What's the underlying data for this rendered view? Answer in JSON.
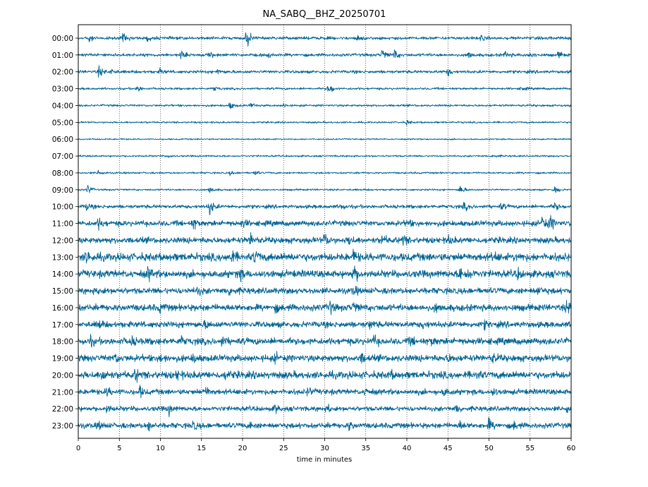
{
  "chart_data": {
    "type": "line",
    "title": "NA_SABQ__BHZ_20250701",
    "xlabel": "time in minutes",
    "ylabel": "",
    "xlim": [
      0,
      60
    ],
    "x_ticks": [
      0,
      5,
      10,
      15,
      20,
      25,
      30,
      35,
      40,
      45,
      50,
      55,
      60
    ],
    "grid": "vertical dotted at every 5 minutes",
    "trace_color": "#006494",
    "rows": [
      {
        "label": "00:00",
        "amplitude": 0.25,
        "events": [
          [
            1.2,
            0.9
          ],
          [
            5.5,
            0.8
          ],
          [
            8.5,
            0.5
          ],
          [
            20.5,
            1.8
          ],
          [
            34,
            0.5
          ],
          [
            49,
            0.4
          ]
        ]
      },
      {
        "label": "01:00",
        "amplitude": 0.25,
        "events": [
          [
            12.5,
            0.7
          ],
          [
            16,
            0.5
          ],
          [
            23,
            0.4
          ],
          [
            37,
            1.0
          ],
          [
            38.5,
            0.9
          ],
          [
            47.5,
            0.6
          ],
          [
            52,
            0.6
          ],
          [
            55,
            0.6
          ],
          [
            58.5,
            0.5
          ]
        ]
      },
      {
        "label": "02:00",
        "amplitude": 0.25,
        "events": [
          [
            2.5,
            0.8
          ],
          [
            4,
            0.5
          ],
          [
            10,
            0.4
          ],
          [
            17,
            0.4
          ],
          [
            45,
            0.6
          ]
        ]
      },
      {
        "label": "03:00",
        "amplitude": 0.18,
        "events": [
          [
            7.2,
            0.6
          ],
          [
            16.5,
            0.4
          ],
          [
            30.5,
            1.2
          ],
          [
            54,
            0.4
          ]
        ]
      },
      {
        "label": "04:00",
        "amplitude": 0.18,
        "events": [
          [
            18.5,
            0.6
          ],
          [
            21,
            0.4
          ],
          [
            25,
            0.3
          ]
        ]
      },
      {
        "label": "05:00",
        "amplitude": 0.15,
        "events": [
          [
            40,
            0.4
          ]
        ]
      },
      {
        "label": "06:00",
        "amplitude": 0.12,
        "events": []
      },
      {
        "label": "07:00",
        "amplitude": 0.15,
        "events": [
          [
            11,
            0.3
          ],
          [
            50.5,
            0.4
          ]
        ]
      },
      {
        "label": "08:00",
        "amplitude": 0.15,
        "events": [
          [
            2.5,
            0.5
          ],
          [
            18.5,
            0.3
          ],
          [
            21.5,
            0.4
          ]
        ]
      },
      {
        "label": "09:00",
        "amplitude": 0.15,
        "events": [
          [
            1.2,
            0.8
          ],
          [
            16,
            0.6
          ],
          [
            46.5,
            0.9
          ],
          [
            58,
            0.8
          ]
        ]
      },
      {
        "label": "10:00",
        "amplitude": 0.3,
        "events": [
          [
            1,
            0.6
          ],
          [
            16,
            1.5
          ],
          [
            32,
            0.5
          ],
          [
            47,
            0.6
          ],
          [
            51.5,
            0.5
          ],
          [
            58,
            0.7
          ]
        ]
      },
      {
        "label": "11:00",
        "amplitude": 0.45,
        "events": [
          [
            2.5,
            0.8
          ],
          [
            14,
            0.8
          ],
          [
            20,
            0.6
          ],
          [
            40,
            0.6
          ],
          [
            56.5,
            1.4
          ],
          [
            57.5,
            1.0
          ]
        ]
      },
      {
        "label": "12:00",
        "amplitude": 0.5,
        "events": [
          [
            21,
            1.0
          ],
          [
            30,
            1.0
          ],
          [
            33,
            0.8
          ],
          [
            37,
            0.8
          ],
          [
            39.5,
            0.9
          ],
          [
            45,
            0.6
          ]
        ]
      },
      {
        "label": "13:00",
        "amplitude": 0.65,
        "events": [
          [
            1,
            1.0
          ],
          [
            18.5,
            1.2
          ],
          [
            21.5,
            1.1
          ],
          [
            33.5,
            0.8
          ],
          [
            50.5,
            0.6
          ],
          [
            53.5,
            0.5
          ]
        ]
      },
      {
        "label": "14:00",
        "amplitude": 0.6,
        "events": [
          [
            8.5,
            1.0
          ],
          [
            19.5,
            1.2
          ],
          [
            33.5,
            1.8
          ],
          [
            46.5,
            1.3
          ],
          [
            47.5,
            0.8
          ],
          [
            53.5,
            0.6
          ]
        ]
      },
      {
        "label": "15:00",
        "amplitude": 0.5,
        "events": [
          [
            2.5,
            0.6
          ],
          [
            14.5,
            0.6
          ],
          [
            18.5,
            0.8
          ],
          [
            33.5,
            0.6
          ],
          [
            56,
            0.6
          ]
        ]
      },
      {
        "label": "16:00",
        "amplitude": 0.55,
        "events": [
          [
            10,
            0.6
          ],
          [
            24,
            0.5
          ],
          [
            30.5,
            1.2
          ],
          [
            33.5,
            0.8
          ],
          [
            43.5,
            0.6
          ],
          [
            59.5,
            0.8
          ]
        ]
      },
      {
        "label": "17:00",
        "amplitude": 0.5,
        "events": [
          [
            2.5,
            0.7
          ],
          [
            15.5,
            0.6
          ],
          [
            35.5,
            0.6
          ],
          [
            42,
            0.5
          ],
          [
            49.5,
            0.5
          ]
        ]
      },
      {
        "label": "18:00",
        "amplitude": 0.55,
        "events": [
          [
            1.5,
            0.6
          ],
          [
            6.5,
            0.6
          ],
          [
            12.5,
            0.6
          ],
          [
            17.5,
            0.6
          ],
          [
            36,
            0.7
          ],
          [
            40.5,
            0.6
          ],
          [
            43,
            0.5
          ]
        ]
      },
      {
        "label": "19:00",
        "amplitude": 0.55,
        "events": [
          [
            4.5,
            0.8
          ],
          [
            10,
            0.7
          ],
          [
            14,
            0.7
          ],
          [
            24,
            0.6
          ],
          [
            34.5,
            0.7
          ],
          [
            45,
            0.6
          ],
          [
            50.5,
            0.6
          ]
        ]
      },
      {
        "label": "20:00",
        "amplitude": 0.6,
        "events": [
          [
            3,
            1.2
          ],
          [
            7,
            0.9
          ],
          [
            12,
            0.6
          ],
          [
            18,
            0.6
          ],
          [
            38,
            0.5
          ],
          [
            48.5,
            0.6
          ]
        ]
      },
      {
        "label": "21:00",
        "amplitude": 0.45,
        "events": [
          [
            3.5,
            0.6
          ],
          [
            7.5,
            0.8
          ],
          [
            15.5,
            0.9
          ],
          [
            28,
            0.6
          ],
          [
            35,
            0.6
          ],
          [
            44.5,
            0.6
          ],
          [
            50.5,
            0.6
          ]
        ]
      },
      {
        "label": "22:00",
        "amplitude": 0.4,
        "events": [
          [
            3.5,
            0.6
          ],
          [
            11,
            0.9
          ],
          [
            24,
            0.6
          ],
          [
            30.5,
            0.6
          ],
          [
            46,
            0.6
          ],
          [
            59.5,
            0.7
          ]
        ]
      },
      {
        "label": "23:00",
        "amplitude": 0.45,
        "events": [
          [
            2.5,
            0.6
          ],
          [
            8.5,
            0.8
          ],
          [
            14,
            0.6
          ],
          [
            21,
            0.5
          ],
          [
            33,
            0.6
          ],
          [
            46.5,
            0.6
          ],
          [
            50,
            0.9
          ],
          [
            53,
            0.6
          ]
        ]
      }
    ]
  }
}
